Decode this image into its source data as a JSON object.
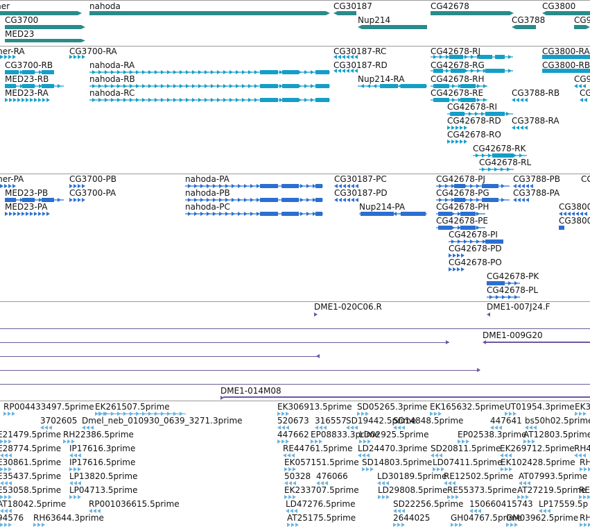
{
  "colors": {
    "gene": "#2a8b8b",
    "transcript": "#159ec8",
    "protein": "#2b6fd1",
    "clone": "#6d55a5",
    "est": "#6bb3e0",
    "separator": "#9a9a9a"
  },
  "tracks": {
    "genes": {
      "labels": [
        "mer",
        "CG3700",
        "MED23",
        "nahoda",
        "CG30187",
        "Nup214",
        "CG42678",
        "CG3788",
        "CG3800",
        "CG9"
      ]
    },
    "transcripts": {
      "labels": [
        "mer-RA",
        "CG3700-RA",
        "CG3700-RB",
        "MED23-RB",
        "MED23-RA",
        "nahoda-RA",
        "nahoda-RB",
        "nahoda-RC",
        "CG30187-RC",
        "CG30187-RD",
        "Nup214-RA",
        "CG42678-RJ",
        "CG42678-RG",
        "CG42678-RH",
        "CG42678-RE",
        "CG42678-RI",
        "CG42678-RD",
        "CG42678-RO",
        "CG42678-RK",
        "CG42678-RL",
        "CG3800-RA",
        "CG3800-RB",
        "CG3788-RB",
        "CG3788-RA",
        "CG9",
        "CG"
      ]
    },
    "proteins": {
      "labels": [
        "mer-PA",
        "CG3700-PB",
        "CG3700-PA",
        "MED23-PB",
        "MED23-PA",
        "nahoda-PA",
        "nahoda-PB",
        "nahoda-PC",
        "CG30187-PC",
        "CG30187-PD",
        "Nup214-PA",
        "CG42678-PJ",
        "CG42678-PG",
        "CG42678-PH",
        "CG42678-PE",
        "CG42678-PI",
        "CG42678-PD",
        "CG42678-PO",
        "CG42678-PK",
        "CG42678-PL",
        "CG3788-PB",
        "CG3788-PA",
        "CG3800",
        "CG3800",
        "CG"
      ]
    },
    "clones": {
      "labels": [
        "DME1-020C06.R",
        "DME1-007J24.F",
        "DME1-009G20",
        "DME1-014M08"
      ]
    },
    "ests": {
      "labels": [
        "RP004433497.5prime",
        "EK261507.5prime",
        "EK306913.5prime",
        "SD05265.3prime",
        "EK165632.5prime",
        "UT01954.3prime",
        "EK3",
        "3702605",
        "Dmel_neb_010930_0639_3271.3prime",
        "520673",
        "316557",
        "SD19442.5prime",
        "SD14848.5prime",
        "447641",
        "bs50h02.5prime",
        "E21479.5prime",
        "RH22386.5prime",
        "447662",
        "EP08833.3prime",
        "LD02925.5prime",
        "EP02538.3prime",
        "AT12803.5prime",
        "E28774.5prime",
        "IP17616.3prime",
        "RE44761.5prime",
        "LD24470.3prime",
        "SD20811.5prime",
        "EK269712.5prime",
        "RH4",
        "E30861.5prime",
        "IP17616.5prime",
        "EK057151.5prime",
        "SD14803.5prime",
        "LD07411.5prime",
        "EK102428.5prime",
        "RH",
        "E35437.5prime",
        "LP13820.5prime",
        "50328",
        "476066",
        "LD30189.5prime",
        "RE12502.5prime",
        "AT07993.5prime",
        "E53058.5prime",
        "LP04713.5prime",
        "EK233707.5prime",
        "LD29808.5prime",
        "RE55373.5prime",
        "AT27219.5prime",
        "RE",
        "AT18042.5prime",
        "RP001036615.5prime",
        "LD47276.5prime",
        "SD22256.5prime",
        "150660415743",
        "LP17559.5p",
        "94576",
        "RH63644.3prime",
        "AT25175.5prime",
        "2644025",
        "GH04767.5prime",
        "GM03962.5prime",
        "RH"
      ]
    }
  }
}
